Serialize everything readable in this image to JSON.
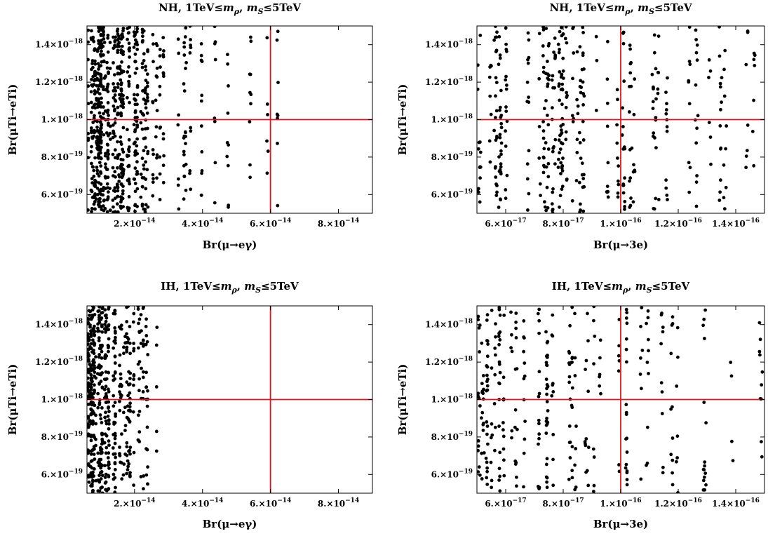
{
  "chart_data": [
    {
      "type": "scatter",
      "title": "NH, 1TeV≤mρ, mS≤5TeV",
      "title_parts": [
        {
          "t": "NH, 1TeV≤"
        },
        {
          "t": "m",
          "i": true
        },
        {
          "t": "ρ",
          "i": true,
          "sub": true
        },
        {
          "t": ", "
        },
        {
          "t": "m",
          "i": true
        },
        {
          "t": "S",
          "i": true,
          "sub": true
        },
        {
          "t": "≤5TeV"
        }
      ],
      "xlabel": "Br(μ→eγ)",
      "ylabel": "Br(μTi→eTi)",
      "xlim": [
        6e-15,
        9e-14
      ],
      "ylim": [
        5e-19,
        1.5e-18
      ],
      "xticks": [
        {
          "value": 2e-14,
          "mant": "2.",
          "exp": "−14"
        },
        {
          "value": 4e-14,
          "mant": "4.",
          "exp": "−14"
        },
        {
          "value": 6e-14,
          "mant": "6.",
          "exp": "−14"
        },
        {
          "value": 8e-14,
          "mant": "8.",
          "exp": "−14"
        }
      ],
      "yticks": [
        {
          "value": 6e-19,
          "mant": "6.",
          "exp": "−19"
        },
        {
          "value": 8e-19,
          "mant": "8.",
          "exp": "−19"
        },
        {
          "value": 1e-18,
          "mant": "1.",
          "exp": "−18"
        },
        {
          "value": 1.2e-18,
          "mant": "1.2",
          "exp": "−18"
        },
        {
          "value": 1.4e-18,
          "mant": "1.4",
          "exp": "−18"
        }
      ],
      "ref_lines": {
        "x": 6e-14,
        "y": 1e-18,
        "color": "#e0141e"
      },
      "point_color": "#000000",
      "points": {
        "distribution": "dense vertical band near the left edge thinning out to the right",
        "columns": [
          {
            "x_range": [
              6e-15,
              1e-14
            ],
            "count": 190
          },
          {
            "x_range": [
              1e-14,
              1.5e-14
            ],
            "count": 180
          },
          {
            "x_range": [
              1.5e-14,
              2e-14
            ],
            "count": 170
          },
          {
            "x_range": [
              2e-14,
              2.4e-14
            ],
            "count": 120
          },
          {
            "x_range": [
              2.4e-14,
              2.9e-14
            ],
            "count": 45
          },
          {
            "x_range": [
              2.9e-14,
              3.6e-14
            ],
            "count": 30
          },
          {
            "x_range": [
              3.6e-14,
              4.4e-14
            ],
            "count": 30
          },
          {
            "x_range": [
              4.4e-14,
              5.5e-14
            ],
            "count": 20
          },
          {
            "x_range": [
              5.5e-14,
              6.4e-14
            ],
            "count": 14
          }
        ]
      }
    },
    {
      "type": "scatter",
      "title": "NH, 1TeV≤mρ, mS≤5TeV",
      "title_parts": [
        {
          "t": "NH, 1TeV≤"
        },
        {
          "t": "m",
          "i": true
        },
        {
          "t": "ρ",
          "i": true,
          "sub": true
        },
        {
          "t": ", "
        },
        {
          "t": "m",
          "i": true
        },
        {
          "t": "S",
          "i": true,
          "sub": true
        },
        {
          "t": "≤5TeV"
        }
      ],
      "xlabel": "Br(μ→3e)",
      "ylabel": "Br(μTi→eTi)",
      "xlim": [
        5e-17,
        1.5e-16
      ],
      "ylim": [
        5e-19,
        1.5e-18
      ],
      "xticks": [
        {
          "value": 6e-17,
          "mant": "6.",
          "exp": "−17"
        },
        {
          "value": 8e-17,
          "mant": "8.",
          "exp": "−17"
        },
        {
          "value": 1e-16,
          "mant": "1.",
          "exp": "−16"
        },
        {
          "value": 1.2e-16,
          "mant": "1.2",
          "exp": "−16"
        },
        {
          "value": 1.4e-16,
          "mant": "1.4",
          "exp": "−16"
        }
      ],
      "yticks": [
        {
          "value": 6e-19,
          "mant": "6.",
          "exp": "−19"
        },
        {
          "value": 8e-19,
          "mant": "8.",
          "exp": "−19"
        },
        {
          "value": 1e-18,
          "mant": "1.",
          "exp": "−18"
        },
        {
          "value": 1.2e-18,
          "mant": "1.2",
          "exp": "−18"
        },
        {
          "value": 1.4e-18,
          "mant": "1.4",
          "exp": "−18"
        }
      ],
      "ref_lines": {
        "x": 1e-16,
        "y": 1e-18,
        "color": "#e0141e"
      },
      "point_color": "#000000",
      "points": {
        "distribution": "vertical streaks across the full range, densest between 6e-17 and 8e-17",
        "columns": [
          {
            "x_range": [
              5e-17,
              6.5e-17
            ],
            "count": 90
          },
          {
            "x_range": [
              6.5e-17,
              8e-17
            ],
            "count": 130
          },
          {
            "x_range": [
              8e-17,
              9.5e-17
            ],
            "count": 60
          },
          {
            "x_range": [
              9.5e-17,
              1.1e-16
            ],
            "count": 60
          },
          {
            "x_range": [
              1.1e-16,
              1.25e-16
            ],
            "count": 45
          },
          {
            "x_range": [
              1.25e-16,
              1.5e-16
            ],
            "count": 55
          }
        ]
      }
    },
    {
      "type": "scatter",
      "title": "IH, 1TeV≤mρ, mS≤5TeV",
      "title_parts": [
        {
          "t": "IH, 1TeV≤"
        },
        {
          "t": "m",
          "i": true
        },
        {
          "t": "ρ",
          "i": true,
          "sub": true
        },
        {
          "t": ", "
        },
        {
          "t": "m",
          "i": true
        },
        {
          "t": "S",
          "i": true,
          "sub": true
        },
        {
          "t": "≤5TeV"
        }
      ],
      "xlabel": "Br(μ→eγ)",
      "ylabel": "Br(μTi→eTi)",
      "xlim": [
        6e-15,
        9e-14
      ],
      "ylim": [
        5e-19,
        1.5e-18
      ],
      "xticks": [
        {
          "value": 2e-14,
          "mant": "2.",
          "exp": "−14"
        },
        {
          "value": 4e-14,
          "mant": "4.",
          "exp": "−14"
        },
        {
          "value": 6e-14,
          "mant": "6.",
          "exp": "−14"
        },
        {
          "value": 8e-14,
          "mant": "8.",
          "exp": "−14"
        }
      ],
      "yticks": [
        {
          "value": 6e-19,
          "mant": "6.",
          "exp": "−19"
        },
        {
          "value": 8e-19,
          "mant": "8.",
          "exp": "−19"
        },
        {
          "value": 1e-18,
          "mant": "1.",
          "exp": "−18"
        },
        {
          "value": 1.2e-18,
          "mant": "1.2",
          "exp": "−18"
        },
        {
          "value": 1.4e-18,
          "mant": "1.4",
          "exp": "−18"
        }
      ],
      "ref_lines": {
        "x": 6e-14,
        "y": 1e-18,
        "color": "#e0141e"
      },
      "point_color": "#000000",
      "points": {
        "distribution": "very dense band at the left edge, none beyond about 2.7e-14",
        "columns": [
          {
            "x_range": [
              6e-15,
              9e-15
            ],
            "count": 200
          },
          {
            "x_range": [
              9e-15,
              1.2e-14
            ],
            "count": 140
          },
          {
            "x_range": [
              1.2e-14,
              1.6e-14
            ],
            "count": 100
          },
          {
            "x_range": [
              1.6e-14,
              2e-14
            ],
            "count": 80
          },
          {
            "x_range": [
              2e-14,
              2.35e-14
            ],
            "count": 45
          },
          {
            "x_range": [
              2.35e-14,
              2.75e-14
            ],
            "count": 15
          }
        ]
      }
    },
    {
      "type": "scatter",
      "title": "IH, 1TeV≤mρ, mS≤5TeV",
      "title_parts": [
        {
          "t": "IH, 1TeV≤"
        },
        {
          "t": "m",
          "i": true
        },
        {
          "t": "ρ",
          "i": true,
          "sub": true
        },
        {
          "t": ", "
        },
        {
          "t": "m",
          "i": true
        },
        {
          "t": "S",
          "i": true,
          "sub": true
        },
        {
          "t": "≤5TeV"
        }
      ],
      "xlabel": "Br(μ→3e)",
      "ylabel": "Br(μTi→eTi)",
      "xlim": [
        5e-17,
        1.5e-16
      ],
      "ylim": [
        5e-19,
        1.5e-18
      ],
      "xticks": [
        {
          "value": 6e-17,
          "mant": "6.",
          "exp": "−17"
        },
        {
          "value": 8e-17,
          "mant": "8.",
          "exp": "−17"
        },
        {
          "value": 1e-16,
          "mant": "1.",
          "exp": "−16"
        },
        {
          "value": 1.2e-16,
          "mant": "1.2",
          "exp": "−16"
        },
        {
          "value": 1.4e-16,
          "mant": "1.4",
          "exp": "−16"
        }
      ],
      "yticks": [
        {
          "value": 6e-19,
          "mant": "6.",
          "exp": "−19"
        },
        {
          "value": 8e-19,
          "mant": "8.",
          "exp": "−19"
        },
        {
          "value": 1e-18,
          "mant": "1.",
          "exp": "−18"
        },
        {
          "value": 1.2e-18,
          "mant": "1.2",
          "exp": "−18"
        },
        {
          "value": 1.4e-18,
          "mant": "1.4",
          "exp": "−18"
        }
      ],
      "ref_lines": {
        "x": 1e-16,
        "y": 1e-18,
        "color": "#e0141e"
      },
      "point_color": "#000000",
      "points": {
        "distribution": "vertical streaks, densest between 5e-17 and 6e-17, sparse toward 1.5e-16",
        "columns": [
          {
            "x_range": [
              5e-17,
              6.2e-17
            ],
            "count": 120
          },
          {
            "x_range": [
              6.2e-17,
              7.5e-17
            ],
            "count": 70
          },
          {
            "x_range": [
              7.5e-17,
              9e-17
            ],
            "count": 55
          },
          {
            "x_range": [
              9e-17,
              1.05e-16
            ],
            "count": 40
          },
          {
            "x_range": [
              1.05e-16,
              1.25e-16
            ],
            "count": 45
          },
          {
            "x_range": [
              1.25e-16,
              1.5e-16
            ],
            "count": 30
          }
        ]
      }
    }
  ]
}
